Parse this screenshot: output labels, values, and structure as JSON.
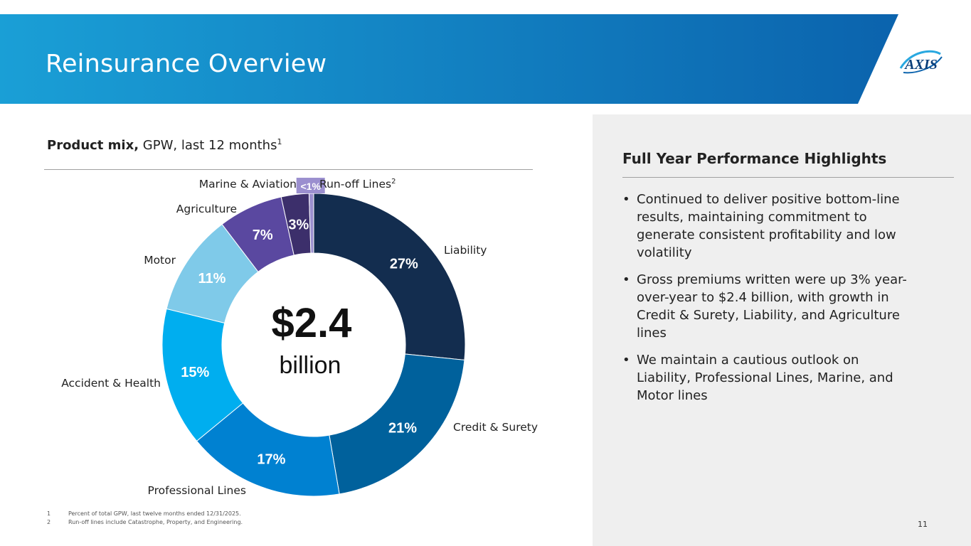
{
  "header": {
    "title": "Reinsurance Overview",
    "logo_text": "AXIS",
    "colors": {
      "banner_start": "#1a9fd6",
      "banner_end": "#0b63ad"
    }
  },
  "left": {
    "title_bold": "Product mix,",
    "title_rest": " GPW, last 12 months",
    "title_sup": "1"
  },
  "chart_data": {
    "type": "pie",
    "subtype": "donut",
    "center_value": "$2.4",
    "center_unit": "billion",
    "categories": [
      "Liability",
      "Credit & Surety",
      "Professional Lines",
      "Accident & Health",
      "Motor",
      "Agriculture",
      "Marine & Aviation",
      "Run-off Lines"
    ],
    "values": [
      27,
      21,
      17,
      15,
      11,
      7,
      3,
      0.5
    ],
    "value_labels": [
      "27%",
      "21%",
      "17%",
      "15%",
      "11%",
      "7%",
      "3%",
      "<1%"
    ],
    "category_sups": [
      "",
      "",
      "",
      "",
      "",
      "",
      "",
      "2"
    ],
    "colors": [
      "#132d4f",
      "#00619c",
      "#0081d1",
      "#00aeef",
      "#7fcae9",
      "#5a48a0",
      "#3c2f6b",
      "#9b8fcf"
    ]
  },
  "right": {
    "title": "Full Year Performance Highlights",
    "bullet_char": "•",
    "bullets": [
      "Continued to deliver positive bottom-line results, maintaining commitment to generate consistent profitability and low volatility",
      "Gross premiums written were up 3% year-over-year to $2.4 billion, with growth in Credit & Surety, Liability, and Agriculture lines",
      "We maintain a cautious outlook on Liability, Professional Lines, Marine, and Motor lines"
    ]
  },
  "footnotes": [
    {
      "num": "1",
      "text": "Percent of total GPW, last twelve months ended 12/31/2025."
    },
    {
      "num": "2",
      "text": "Run-off lines include Catastrophe, Property, and Engineering."
    }
  ],
  "page_number": "11"
}
